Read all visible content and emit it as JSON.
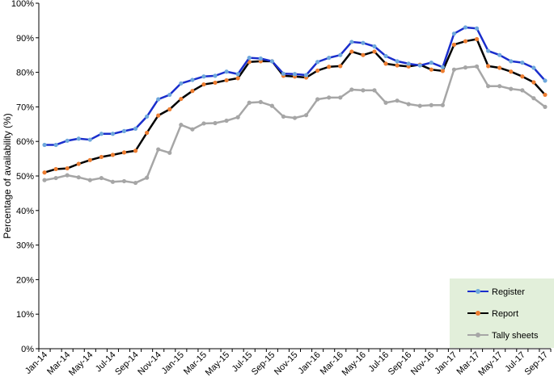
{
  "chart_data": {
    "type": "line",
    "title": "",
    "xlabel": "",
    "ylabel": "Percentage of availability (%)",
    "ylim": [
      0,
      100
    ],
    "y_ticks": [
      "0%",
      "10%",
      "20%",
      "30%",
      "40%",
      "50%",
      "60%",
      "70%",
      "80%",
      "90%",
      "100%"
    ],
    "grid": false,
    "legend_position": "bottom-right",
    "legend_background": "#e2efda",
    "x": [
      "Jan-14",
      "Feb-14",
      "Mar-14",
      "Apr-14",
      "May-14",
      "Jun-14",
      "Jul-14",
      "Aug-14",
      "Sep-14",
      "Oct-14",
      "Nov-14",
      "Dec-14",
      "Jan-15",
      "Feb-15",
      "Mar-15",
      "Apr-15",
      "May-15",
      "Jun-15",
      "Jul-15",
      "Aug-15",
      "Sep-15",
      "Oct-15",
      "Nov-15",
      "Dec-15",
      "Jan-16",
      "Feb-16",
      "Mar-16",
      "Apr-16",
      "May-16",
      "Jun-16",
      "Jul-16",
      "Aug-16",
      "Sep-16",
      "Oct-16",
      "Nov-16",
      "Dec-16",
      "Jan-17",
      "Feb-17",
      "Mar-17",
      "Apr-17",
      "May-17",
      "Jun-17",
      "Jul-17",
      "Aug-17",
      "Sep-17"
    ],
    "x_tick_labels": [
      "Jan-14",
      "Mar-14",
      "May-14",
      "Jul-14",
      "Sep-14",
      "Nov-14",
      "Jan-15",
      "Mar-15",
      "May-15",
      "Jul-15",
      "Sep-15",
      "Nov-15",
      "Jan-16",
      "Mar-16",
      "May-16",
      "Jul-16",
      "Sep-16",
      "Nov-16",
      "Jan-17",
      "Mar-17",
      "May-17",
      "Jul-17",
      "Sep-17"
    ],
    "series": [
      {
        "name": "Register",
        "line_color": "#1a2ecc",
        "marker_color": "#6fa8dc",
        "values": [
          59,
          59,
          60.2,
          60.8,
          60.5,
          62.2,
          62.2,
          63,
          63.7,
          67.2,
          72.2,
          73.5,
          76.8,
          77.8,
          78.8,
          79,
          80.2,
          79.5,
          84.2,
          84,
          83.2,
          79.6,
          79.5,
          79.2,
          83,
          84.2,
          85,
          88.8,
          88.5,
          87.5,
          84.7,
          83.2,
          82.5,
          82,
          82.8,
          81.5,
          91.2,
          93,
          92.7,
          86.2,
          85,
          83.2,
          82.8,
          81.3,
          77.6
        ]
      },
      {
        "name": "Report",
        "line_color": "#000000",
        "marker_color": "#ed7d31",
        "values": [
          51,
          52,
          52.2,
          53.5,
          54.6,
          55.5,
          56.1,
          56.8,
          57.3,
          62.5,
          67.5,
          69.3,
          72.3,
          74.6,
          76.5,
          77,
          77.7,
          78.3,
          83,
          83.2,
          83.2,
          79,
          78.8,
          78.5,
          80.5,
          81.6,
          81.8,
          86,
          85,
          86,
          82.5,
          82,
          81.7,
          82.2,
          80.8,
          80.4,
          88,
          89,
          89.6,
          81.8,
          81.3,
          80.2,
          78.8,
          77.1,
          73.5
        ]
      },
      {
        "name": "Tally sheets",
        "line_color": "#a6a6a6",
        "marker_color": "#a6a6a6",
        "values": [
          48.8,
          49.4,
          50.2,
          49.6,
          48.8,
          49.4,
          48.3,
          48.5,
          48,
          49.5,
          57.7,
          56.7,
          64.8,
          63.5,
          65.2,
          65.3,
          66,
          67,
          71.2,
          71.4,
          70.3,
          67.2,
          66.8,
          67.6,
          72.2,
          72.7,
          72.7,
          75,
          74.8,
          74.8,
          71.2,
          71.8,
          70.8,
          70.3,
          70.5,
          70.5,
          80.8,
          81.4,
          81.7,
          76,
          76,
          75.2,
          74.8,
          72.5,
          70
        ]
      }
    ]
  }
}
